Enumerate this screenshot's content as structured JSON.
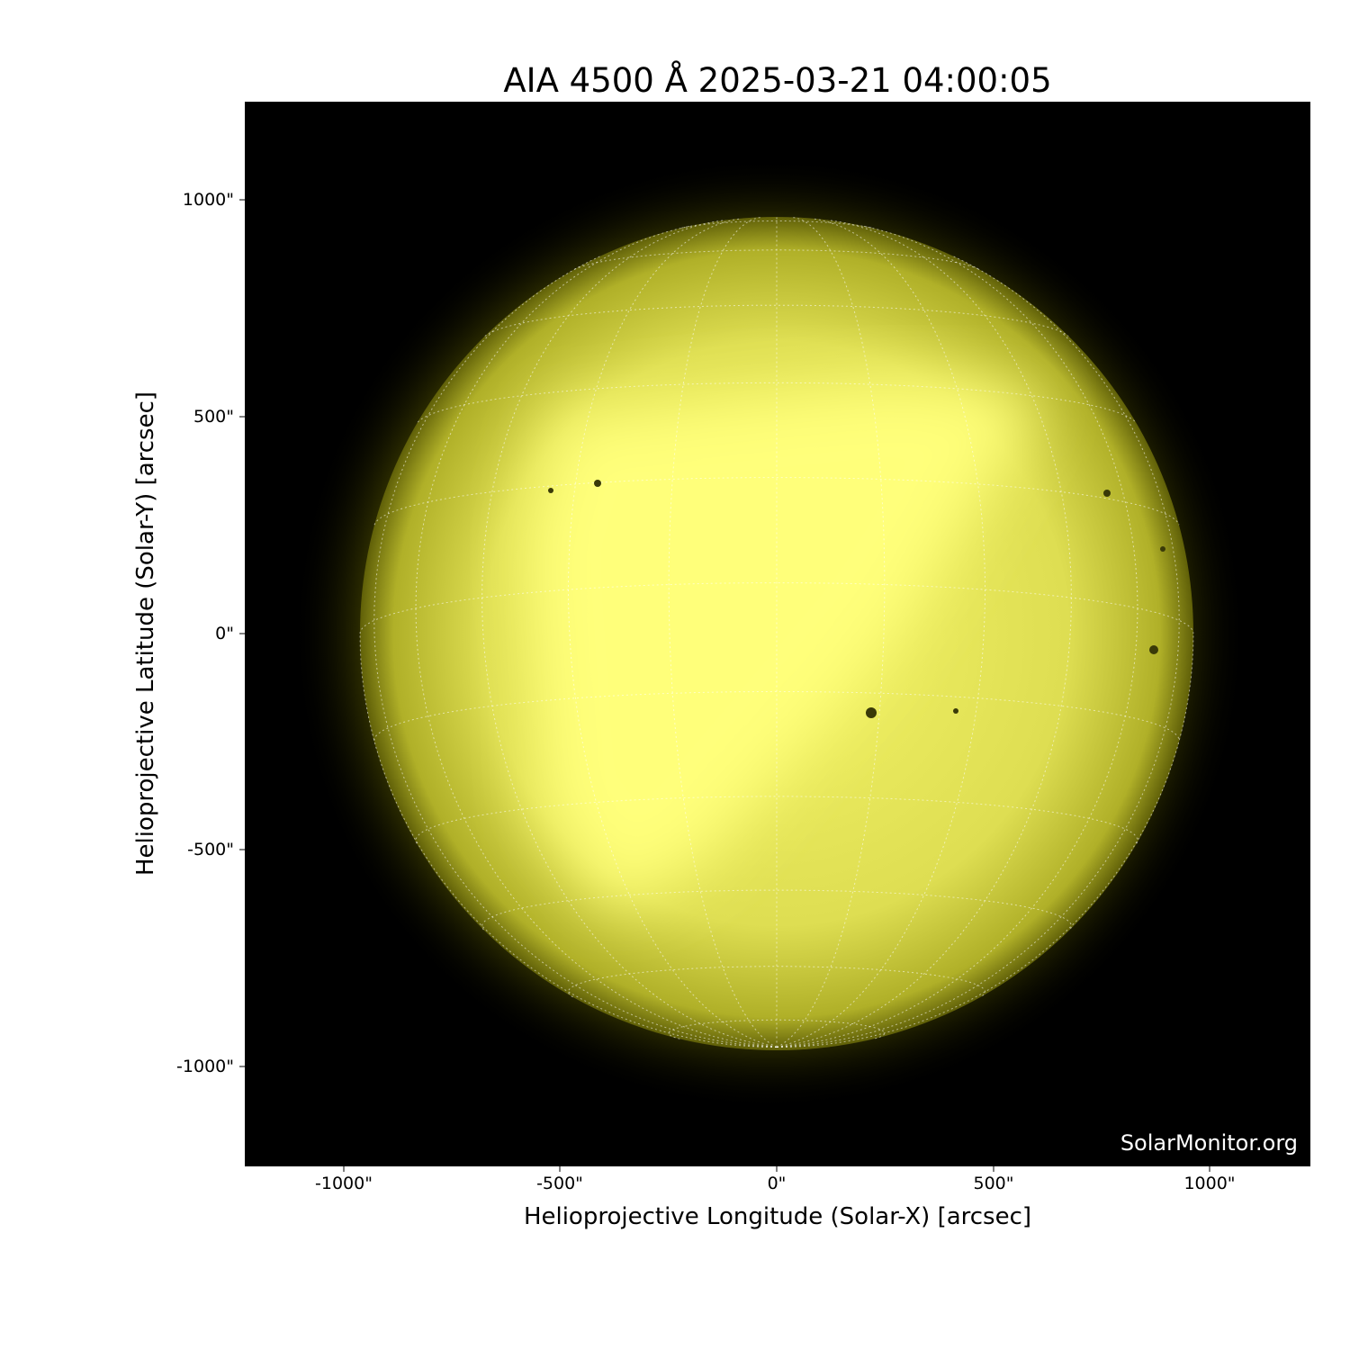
{
  "title": "AIA 4500 Å 2025-03-21 04:00:05",
  "xlabel": "Helioprojective Longitude (Solar-X) [arcsec]",
  "ylabel": "Helioprojective Latitude (Solar-Y) [arcsec]",
  "xticks": [
    "-1000\"",
    "-500\"",
    "0\"",
    "500\"",
    "1000\""
  ],
  "yticks": [
    "1000\"",
    "500\"",
    "0\"",
    "-500\"",
    "-1000\""
  ],
  "watermark": "SolarMonitor.org",
  "colors": {
    "disk_bright": "#ffff80",
    "disk_mid": "#d6d64a",
    "disk_limb": "#6e6e10",
    "background": "#000000"
  }
}
